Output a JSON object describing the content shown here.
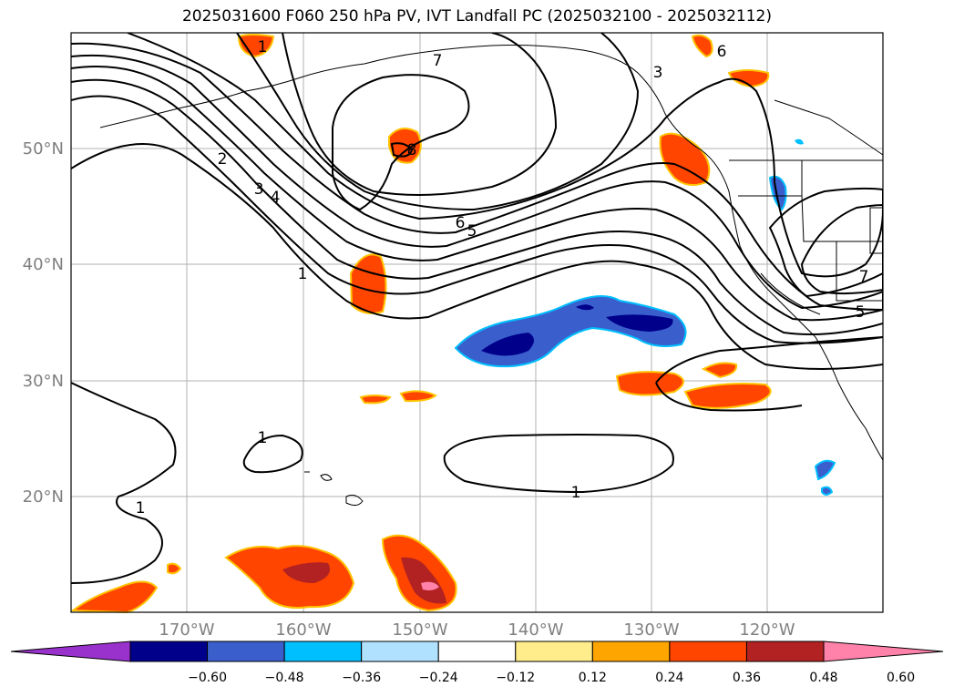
{
  "title": "2025031600 F060 250 hPa PV, IVT Landfall PC (2025032100 - 2025032112)",
  "lat_labels": [
    "50°N",
    "40°N",
    "30°N",
    "20°N"
  ],
  "lon_labels": [
    "170°W",
    "160°W",
    "150°W",
    "140°W",
    "130°W",
    "120°W"
  ],
  "contour_labels": [
    "1",
    "7",
    "3",
    "6",
    "8",
    "2",
    "3",
    "4",
    "6",
    "5",
    "1",
    "7",
    "5",
    "1",
    "1",
    "1"
  ],
  "colorbar": {
    "ticks": [
      "−0.60",
      "−0.48",
      "−0.36",
      "−0.24",
      "−0.12",
      "0.12",
      "0.24",
      "0.36",
      "0.48",
      "0.60"
    ],
    "colors": [
      "#9932cc",
      "#00008b",
      "#3a5fcd",
      "#00bfff",
      "#b0e2ff",
      "#ffffff",
      "#ffec8b",
      "#ffa500",
      "#ff4500",
      "#b22222",
      "#ff82ab"
    ]
  }
}
